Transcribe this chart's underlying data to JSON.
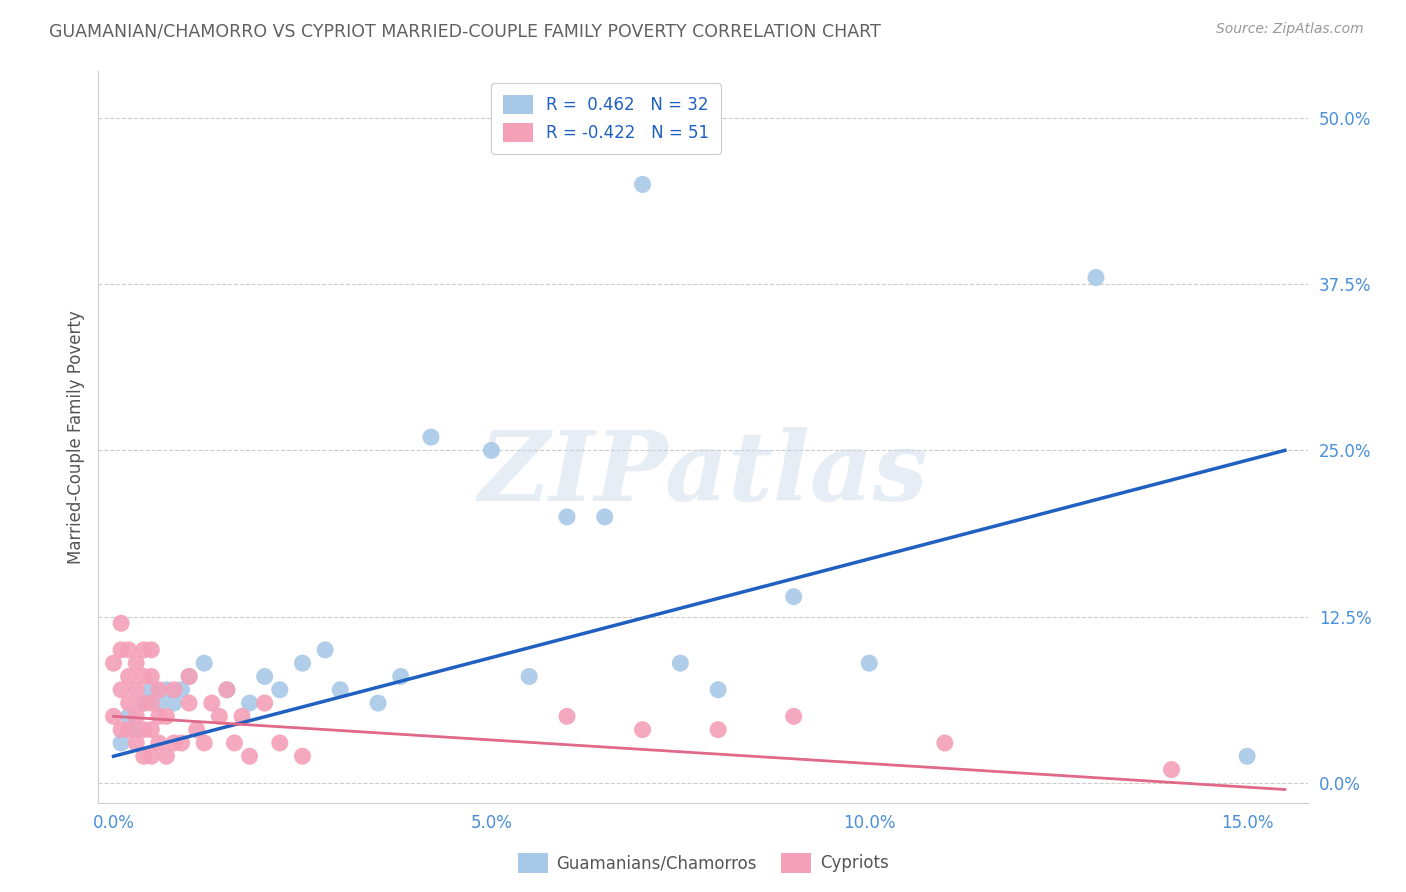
{
  "title": "GUAMANIAN/CHAMORRO VS CYPRIOT MARRIED-COUPLE FAMILY POVERTY CORRELATION CHART",
  "source": "Source: ZipAtlas.com",
  "ylabel": "Married-Couple Family Poverty",
  "xlabel_ticks": [
    "0.0%",
    "5.0%",
    "10.0%",
    "15.0%"
  ],
  "xlabel_vals": [
    0.0,
    0.05,
    0.1,
    0.15
  ],
  "ylabel_ticks": [
    "0.0%",
    "12.5%",
    "25.0%",
    "37.5%",
    "50.0%"
  ],
  "ylabel_vals": [
    0.0,
    0.125,
    0.25,
    0.375,
    0.5
  ],
  "xlim": [
    -0.002,
    0.158
  ],
  "ylim": [
    -0.015,
    0.535
  ],
  "guamanian_R": 0.462,
  "guamanian_N": 32,
  "cypriot_R": -0.422,
  "cypriot_N": 51,
  "guamanian_color": "#a8c8e8",
  "cypriot_color": "#f4a0b8",
  "guamanian_line_color": "#2060c0",
  "cypriot_line_color": "#e06888",
  "background_color": "#ffffff",
  "title_color": "#606060",
  "axis_label_color": "#4a90d9",
  "watermark": "ZIPatlas",
  "guamanian_x": [
    0.001,
    0.002,
    0.003,
    0.004,
    0.005,
    0.006,
    0.007,
    0.008,
    0.009,
    0.01,
    0.012,
    0.015,
    0.018,
    0.02,
    0.022,
    0.025,
    0.028,
    0.03,
    0.035,
    0.038,
    0.042,
    0.05,
    0.055,
    0.06,
    0.065,
    0.07,
    0.075,
    0.08,
    0.09,
    0.1,
    0.13,
    0.15
  ],
  "guamanian_y": [
    0.03,
    0.05,
    0.04,
    0.06,
    0.07,
    0.06,
    0.07,
    0.06,
    0.07,
    0.08,
    0.09,
    0.07,
    0.06,
    0.08,
    0.07,
    0.09,
    0.1,
    0.07,
    0.06,
    0.08,
    0.26,
    0.25,
    0.08,
    0.2,
    0.2,
    0.45,
    0.09,
    0.07,
    0.14,
    0.09,
    0.38,
    0.02
  ],
  "cypriot_x": [
    0.0,
    0.0,
    0.001,
    0.001,
    0.001,
    0.001,
    0.002,
    0.002,
    0.002,
    0.002,
    0.003,
    0.003,
    0.003,
    0.003,
    0.004,
    0.004,
    0.004,
    0.004,
    0.004,
    0.005,
    0.005,
    0.005,
    0.005,
    0.005,
    0.006,
    0.006,
    0.006,
    0.007,
    0.007,
    0.008,
    0.008,
    0.009,
    0.01,
    0.01,
    0.011,
    0.012,
    0.013,
    0.014,
    0.015,
    0.016,
    0.017,
    0.018,
    0.02,
    0.022,
    0.025,
    0.06,
    0.07,
    0.08,
    0.09,
    0.11,
    0.14
  ],
  "cypriot_y": [
    0.05,
    0.09,
    0.04,
    0.07,
    0.1,
    0.12,
    0.04,
    0.06,
    0.08,
    0.1,
    0.03,
    0.05,
    0.07,
    0.09,
    0.02,
    0.04,
    0.06,
    0.08,
    0.1,
    0.02,
    0.04,
    0.06,
    0.08,
    0.1,
    0.03,
    0.05,
    0.07,
    0.02,
    0.05,
    0.03,
    0.07,
    0.03,
    0.06,
    0.08,
    0.04,
    0.03,
    0.06,
    0.05,
    0.07,
    0.03,
    0.05,
    0.02,
    0.06,
    0.03,
    0.02,
    0.05,
    0.04,
    0.04,
    0.05,
    0.03,
    0.01
  ]
}
